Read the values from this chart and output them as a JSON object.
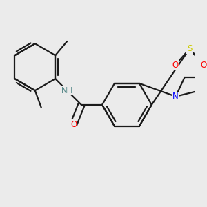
{
  "bg_color": "#ebebeb",
  "bond_color": "#1a1a1a",
  "atom_colors": {
    "N": "#0000ff",
    "S": "#cccc00",
    "O": "#ff0000",
    "NH": "#4a8080"
  },
  "lw": 1.6
}
